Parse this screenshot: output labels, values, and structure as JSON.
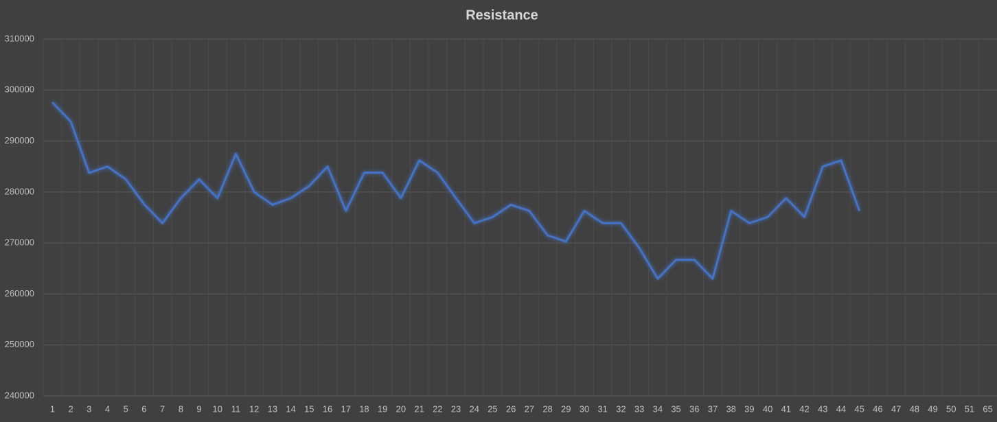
{
  "chart_data": {
    "type": "line",
    "title": "Resistance",
    "categories": [
      "1",
      "2",
      "3",
      "4",
      "5",
      "6",
      "7",
      "8",
      "9",
      "10",
      "11",
      "12",
      "13",
      "14",
      "15",
      "16",
      "17",
      "18",
      "19",
      "20",
      "21",
      "22",
      "23",
      "24",
      "25",
      "26",
      "27",
      "28",
      "29",
      "30",
      "31",
      "32",
      "33",
      "34",
      "35",
      "36",
      "37",
      "38",
      "39",
      "40",
      "41",
      "42",
      "43",
      "44",
      "45",
      "46",
      "47",
      "48",
      "49",
      "50",
      "51",
      "65"
    ],
    "series": [
      {
        "name": "Resistance",
        "color": "#4472c4",
        "values": [
          297600,
          293800,
          283750,
          285000,
          282500,
          277600,
          273900,
          278800,
          282500,
          278800,
          287500,
          280000,
          277500,
          278800,
          281200,
          285000,
          276300,
          283800,
          283800,
          278800,
          286200,
          283800,
          278800,
          273900,
          275100,
          277500,
          276300,
          271500,
          270300,
          276300,
          273900,
          273900,
          269000,
          263000,
          266700,
          266700,
          263000,
          276300,
          273900,
          275100,
          278800,
          275100,
          285000,
          286200,
          276300,
          null,
          null,
          null,
          null,
          null,
          null,
          null
        ]
      }
    ],
    "ylim": [
      240000,
      310000
    ],
    "yticks": [
      240000,
      250000,
      260000,
      270000,
      280000,
      290000,
      300000,
      310000
    ],
    "grid": true
  }
}
